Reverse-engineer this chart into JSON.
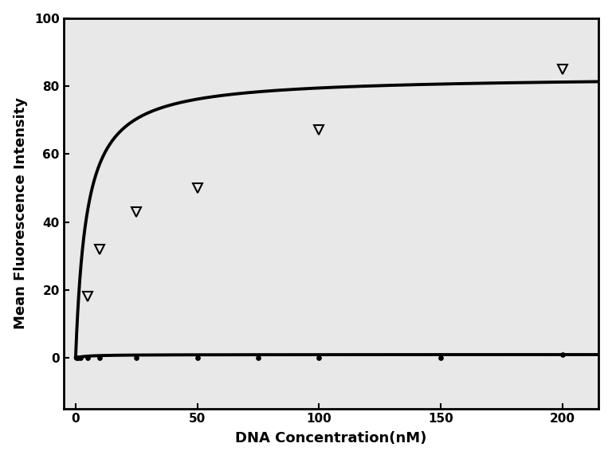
{
  "title": "",
  "xlabel": "DNA Concentration(nM)",
  "ylabel": "Mean Fluorescence Intensity",
  "xlim": [
    -5,
    215
  ],
  "ylim": [
    -15,
    100
  ],
  "xticks": [
    0,
    50,
    100,
    150,
    200
  ],
  "yticks": [
    0,
    20,
    40,
    60,
    80,
    100
  ],
  "series_flat_x": [
    0.5,
    1,
    2,
    5,
    10,
    25,
    50,
    75,
    100,
    150,
    200
  ],
  "series_flat_y": [
    0,
    0,
    0,
    0,
    0,
    0,
    0,
    0,
    0,
    0,
    1
  ],
  "series_tri_x": [
    5,
    10,
    25,
    50,
    100,
    200
  ],
  "series_tri_y": [
    18,
    32,
    43,
    50,
    67,
    85
  ],
  "curve1_Bmax": 83.0,
  "curve1_Kd": 4.5,
  "curve1_n": 1.0,
  "curve2_Bmax": 1.0,
  "curve2_Kd": 4.5,
  "line_color": "#000000",
  "marker_color": "#000000",
  "background_color": "#ffffff",
  "plot_bg_color": "#e8e8e8",
  "xlabel_fontsize": 13,
  "ylabel_fontsize": 13,
  "tick_fontsize": 11,
  "xlabel_fontweight": "bold",
  "ylabel_fontweight": "bold"
}
